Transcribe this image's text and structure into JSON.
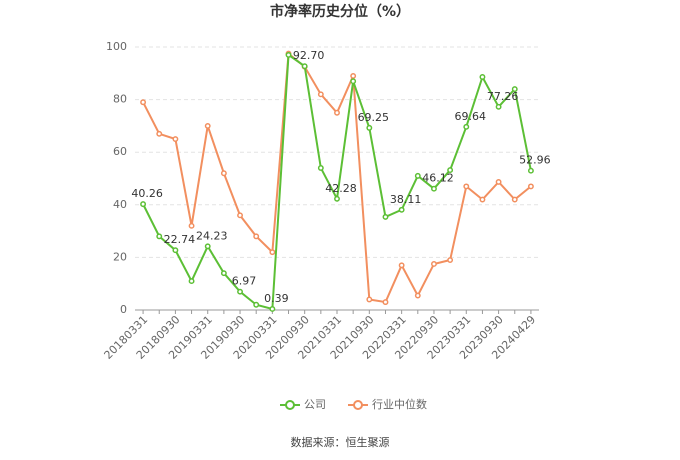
{
  "chart_data": {
    "type": "line",
    "title": "市净率历史分位（%）",
    "source": "数据来源：恒生聚源",
    "categories": [
      "20180331",
      null,
      "20180930",
      null,
      "20190331",
      null,
      "20190930",
      null,
      "20200331",
      null,
      "20200930",
      null,
      "20210331",
      null,
      "20210930",
      null,
      "20220331",
      null,
      "20220930",
      null,
      "20230331",
      null,
      "20230930",
      null,
      "20240429"
    ],
    "series": [
      {
        "name": "公司",
        "color": "#5cbf35",
        "values": [
          40.26,
          28,
          22.74,
          11,
          24.23,
          14,
          6.97,
          2,
          0.39,
          97,
          92.7,
          54,
          42.28,
          87,
          69.25,
          35.4,
          38.11,
          51,
          46.12,
          53.2,
          69.64,
          88.6,
          77.26,
          84,
          52.96
        ],
        "value_labels": [
          "40.26",
          null,
          "22.74",
          null,
          "24.23",
          null,
          "6.97",
          null,
          "0.39",
          null,
          "92.70",
          null,
          "42.28",
          null,
          "69.25",
          null,
          "38.11",
          null,
          "46.12",
          null,
          "69.64",
          null,
          "77.26",
          null,
          "52.96"
        ]
      },
      {
        "name": "行业中位数",
        "color": "#f28f5f",
        "values": [
          79,
          67,
          65,
          32,
          70,
          52,
          36,
          28,
          22,
          97.5,
          92.5,
          82,
          75,
          89,
          4,
          3,
          17,
          5.5,
          17.5,
          19,
          47,
          42,
          48.7,
          42,
          47
        ]
      }
    ],
    "ylim": [
      0,
      100
    ],
    "yticks": [
      0,
      20,
      40,
      60,
      80,
      100
    ],
    "grid": true
  }
}
